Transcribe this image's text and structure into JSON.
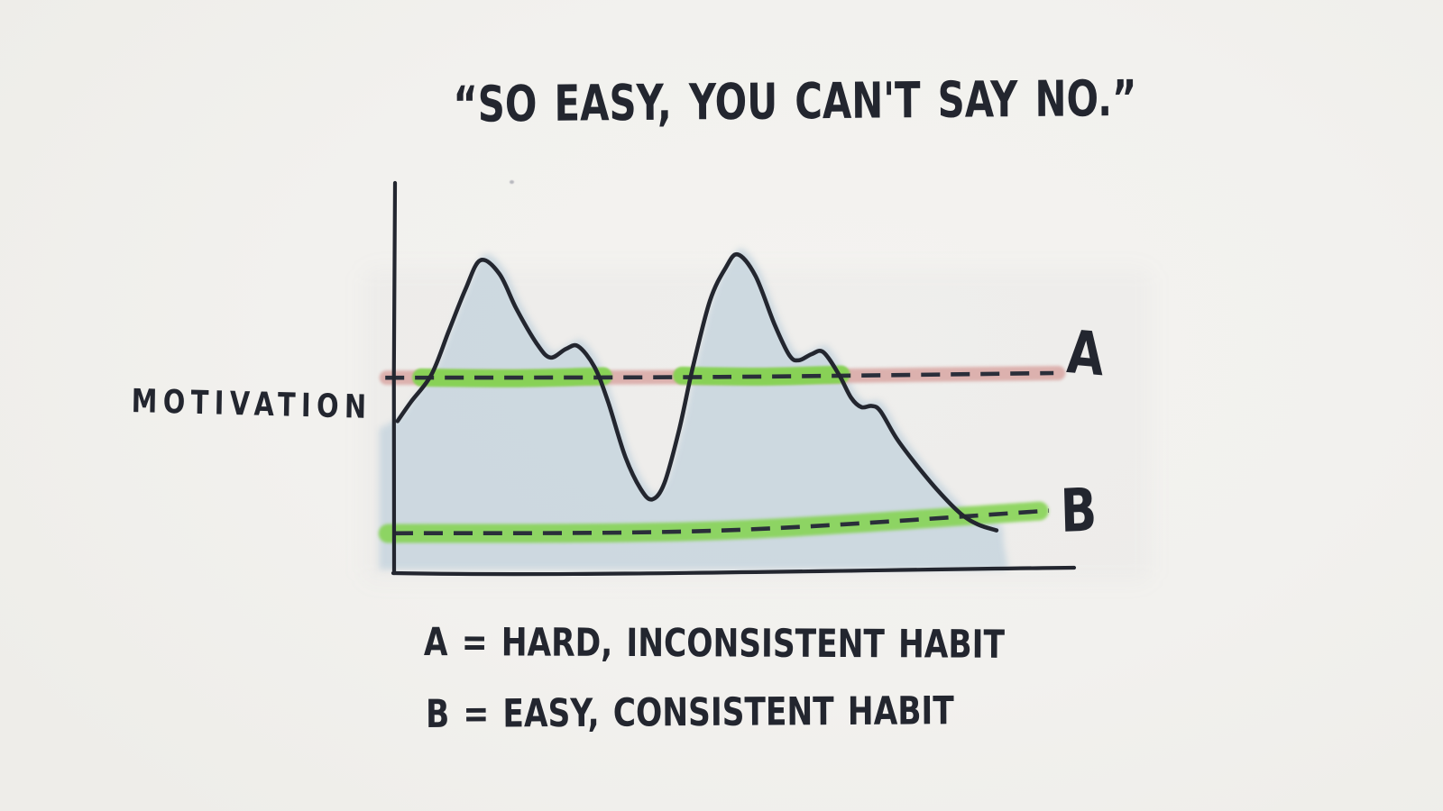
{
  "page": {
    "background": "#f2f1ee"
  },
  "colors": {
    "paper": "#f2f1ee",
    "ink": "#23262f",
    "curve_fill": "#c9d6df",
    "dash": "#2a2e3a",
    "highlight_pink": "#d9a8a5",
    "highlight_green": "#84d351"
  },
  "chart_data": {
    "type": "area",
    "title": "“SO EASY, YOU CAN'T SAY NO.”",
    "ylabel": "MOTIVATION",
    "xlabel": "",
    "x_range": [
      0,
      100
    ],
    "y_range": [
      0,
      100
    ],
    "grid": false,
    "legend_position": "bottom",
    "series": [
      {
        "name": "motivation",
        "points": [
          [
            0.5,
            39
          ],
          [
            2.5,
            44
          ],
          [
            5.5,
            51
          ],
          [
            8,
            62
          ],
          [
            10.5,
            73
          ],
          [
            12.7,
            80.5
          ],
          [
            15.5,
            77
          ],
          [
            18,
            68
          ],
          [
            21,
            59
          ],
          [
            23,
            55.4
          ],
          [
            25.3,
            57.6
          ],
          [
            27.1,
            58.3
          ],
          [
            29.5,
            53
          ],
          [
            31.5,
            44
          ],
          [
            34,
            30
          ],
          [
            36.3,
            21.5
          ],
          [
            38,
            18.8
          ],
          [
            39.8,
            23
          ],
          [
            42,
            37
          ],
          [
            44,
            53
          ],
          [
            46.5,
            70
          ],
          [
            48.8,
            78.5
          ],
          [
            50.6,
            82
          ],
          [
            53.2,
            76.5
          ],
          [
            56,
            64
          ],
          [
            58.2,
            56
          ],
          [
            59.6,
            54.7
          ],
          [
            61.5,
            56.3
          ],
          [
            63.2,
            56.8
          ],
          [
            65.5,
            51
          ],
          [
            67.3,
            45
          ],
          [
            68.8,
            42.6
          ],
          [
            70.3,
            42.9
          ],
          [
            71.6,
            41.6
          ],
          [
            74,
            34.5
          ],
          [
            77,
            27.5
          ],
          [
            80.1,
            21
          ],
          [
            83.5,
            15
          ],
          [
            86,
            12.3
          ],
          [
            88.7,
            10.8
          ]
        ]
      }
    ],
    "thresholds": [
      {
        "id": "A",
        "label": "A",
        "description": "A = HARD, INCONSISTENT HABIT",
        "level_start": 50.2,
        "level_end": 51.4,
        "t_start": -1.1,
        "t_end": 97.8,
        "dash_t_start": -1.3,
        "dash_t_end": 97.1,
        "bow": -0.4,
        "highlight_color": "#d9a8a5",
        "highlight_width": 16,
        "above_color": "#84d351",
        "above_width": 20,
        "above_curve_segments": [
          [
            4.0,
            30.8
          ],
          [
            42.4,
            65.8
          ]
        ]
      },
      {
        "id": "B",
        "label": "B",
        "description": "B = EASY, CONSISTENT HABIT",
        "level_start": 10,
        "level_end": 15.8,
        "t_start": -0.9,
        "t_end": 95.0,
        "dash_t_start": 0,
        "dash_t_end": 96.4,
        "bow": -2.2,
        "highlight_color": "#84d351",
        "highlight_width": 21
      }
    ]
  }
}
